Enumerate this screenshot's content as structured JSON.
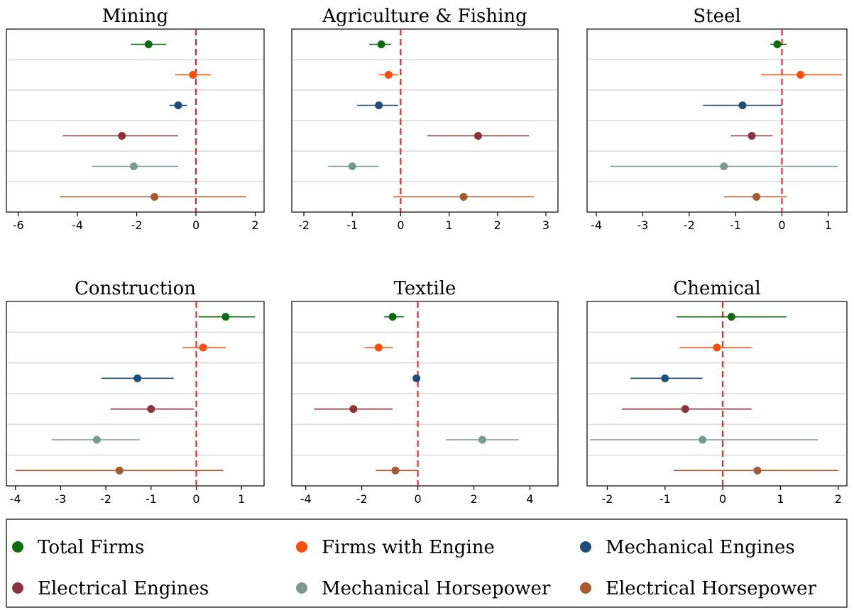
{
  "legend": {
    "position": "bottom",
    "items": [
      {
        "label": "Total Firms",
        "color": "#0f6b0f"
      },
      {
        "label": "Firms with Engine",
        "color": "#ff4d0a"
      },
      {
        "label": "Mechanical Engines",
        "color": "#1f4e79"
      },
      {
        "label": "Electrical Engines",
        "color": "#8c3340"
      },
      {
        "label": "Mechanical Horsepower",
        "color": "#7a9a8d"
      },
      {
        "label": "Electrical Horsepower",
        "color": "#a55a30"
      }
    ]
  },
  "chart_data": [
    {
      "type": "scatter",
      "title": "Mining",
      "xlim": [
        -6.4,
        2.3
      ],
      "xticks": [
        -6,
        -4,
        -2,
        0,
        2
      ],
      "reference_line_x": 0,
      "grid": "horizontal",
      "series": [
        {
          "name": "Total Firms",
          "estimate": -1.6,
          "ci": [
            -2.2,
            -1.0
          ]
        },
        {
          "name": "Firms with Engine",
          "estimate": -0.1,
          "ci": [
            -0.7,
            0.5
          ]
        },
        {
          "name": "Mechanical Engines",
          "estimate": -0.6,
          "ci": [
            -0.9,
            -0.3
          ]
        },
        {
          "name": "Electrical Engines",
          "estimate": -2.5,
          "ci": [
            -4.5,
            -0.6
          ]
        },
        {
          "name": "Mechanical Horsepower",
          "estimate": -2.1,
          "ci": [
            -3.5,
            -0.6
          ]
        },
        {
          "name": "Electrical Horsepower",
          "estimate": -1.4,
          "ci": [
            -4.6,
            1.7
          ]
        }
      ]
    },
    {
      "type": "scatter",
      "title": "Agriculture & Fishing",
      "xlim": [
        -2.25,
        3.25
      ],
      "xticks": [
        -2,
        -1,
        0,
        1,
        2,
        3
      ],
      "reference_line_x": 0,
      "grid": "horizontal",
      "series": [
        {
          "name": "Total Firms",
          "estimate": -0.4,
          "ci": [
            -0.65,
            -0.2
          ]
        },
        {
          "name": "Firms with Engine",
          "estimate": -0.25,
          "ci": [
            -0.45,
            -0.05
          ]
        },
        {
          "name": "Mechanical Engines",
          "estimate": -0.45,
          "ci": [
            -0.9,
            -0.05
          ]
        },
        {
          "name": "Electrical Engines",
          "estimate": 1.6,
          "ci": [
            0.55,
            2.65
          ]
        },
        {
          "name": "Mechanical Horsepower",
          "estimate": -1.0,
          "ci": [
            -1.5,
            -0.45
          ]
        },
        {
          "name": "Electrical Horsepower",
          "estimate": 1.3,
          "ci": [
            -0.15,
            2.75
          ]
        }
      ]
    },
    {
      "type": "scatter",
      "title": "Steel",
      "xlim": [
        -4.2,
        1.4
      ],
      "xticks": [
        -4,
        -3,
        -2,
        -1,
        0,
        1
      ],
      "reference_line_x": 0,
      "grid": "horizontal",
      "series": [
        {
          "name": "Total Firms",
          "estimate": -0.1,
          "ci": [
            -0.25,
            0.1
          ]
        },
        {
          "name": "Firms with Engine",
          "estimate": 0.4,
          "ci": [
            -0.45,
            1.3
          ]
        },
        {
          "name": "Mechanical Engines",
          "estimate": -0.85,
          "ci": [
            -1.7,
            0.0
          ]
        },
        {
          "name": "Electrical Engines",
          "estimate": -0.65,
          "ci": [
            -1.1,
            -0.2
          ]
        },
        {
          "name": "Mechanical Horsepower",
          "estimate": -1.25,
          "ci": [
            -3.7,
            1.2
          ]
        },
        {
          "name": "Electrical Horsepower",
          "estimate": -0.55,
          "ci": [
            -1.25,
            0.1
          ]
        }
      ]
    },
    {
      "type": "scatter",
      "title": "Construction",
      "xlim": [
        -4.2,
        1.5
      ],
      "xticks": [
        -4,
        -3,
        -2,
        -1,
        0,
        1
      ],
      "reference_line_x": 0,
      "grid": "horizontal",
      "series": [
        {
          "name": "Total Firms",
          "estimate": 0.65,
          "ci": [
            0.05,
            1.3
          ]
        },
        {
          "name": "Firms with Engine",
          "estimate": 0.15,
          "ci": [
            -0.3,
            0.65
          ]
        },
        {
          "name": "Mechanical Engines",
          "estimate": -1.3,
          "ci": [
            -2.1,
            -0.5
          ]
        },
        {
          "name": "Electrical Engines",
          "estimate": -1.0,
          "ci": [
            -1.9,
            -0.05
          ]
        },
        {
          "name": "Mechanical Horsepower",
          "estimate": -2.2,
          "ci": [
            -3.2,
            -1.25
          ]
        },
        {
          "name": "Electrical Horsepower",
          "estimate": -1.7,
          "ci": [
            -4.0,
            0.6
          ]
        }
      ]
    },
    {
      "type": "scatter",
      "title": "Textile",
      "xlim": [
        -4.5,
        5.0
      ],
      "xticks": [
        -4,
        -2,
        0,
        2,
        4
      ],
      "reference_line_x": 0,
      "grid": "horizontal",
      "series": [
        {
          "name": "Total Firms",
          "estimate": -0.9,
          "ci": [
            -1.2,
            -0.5
          ]
        },
        {
          "name": "Firms with Engine",
          "estimate": -1.4,
          "ci": [
            -1.9,
            -0.9
          ]
        },
        {
          "name": "Mechanical Engines",
          "estimate": -0.05,
          "ci": [
            -0.15,
            0.05
          ]
        },
        {
          "name": "Electrical Engines",
          "estimate": -2.3,
          "ci": [
            -3.7,
            -0.9
          ]
        },
        {
          "name": "Mechanical Horsepower",
          "estimate": 2.3,
          "ci": [
            1.0,
            3.6
          ]
        },
        {
          "name": "Electrical Horsepower",
          "estimate": -0.8,
          "ci": [
            -1.5,
            0.0
          ]
        }
      ]
    },
    {
      "type": "scatter",
      "title": "Chemical",
      "xlim": [
        -2.35,
        2.15
      ],
      "xticks": [
        -2,
        -1,
        0,
        1,
        2
      ],
      "reference_line_x": 0,
      "grid": "horizontal",
      "series": [
        {
          "name": "Total Firms",
          "estimate": 0.15,
          "ci": [
            -0.8,
            1.1
          ]
        },
        {
          "name": "Firms with Engine",
          "estimate": -0.1,
          "ci": [
            -0.75,
            0.5
          ]
        },
        {
          "name": "Mechanical Engines",
          "estimate": -1.0,
          "ci": [
            -1.6,
            -0.35
          ]
        },
        {
          "name": "Electrical Engines",
          "estimate": -0.65,
          "ci": [
            -1.75,
            0.5
          ]
        },
        {
          "name": "Mechanical Horsepower",
          "estimate": -0.35,
          "ci": [
            -2.3,
            1.65
          ]
        },
        {
          "name": "Electrical Horsepower",
          "estimate": 0.6,
          "ci": [
            -0.85,
            2.0
          ]
        }
      ]
    }
  ]
}
